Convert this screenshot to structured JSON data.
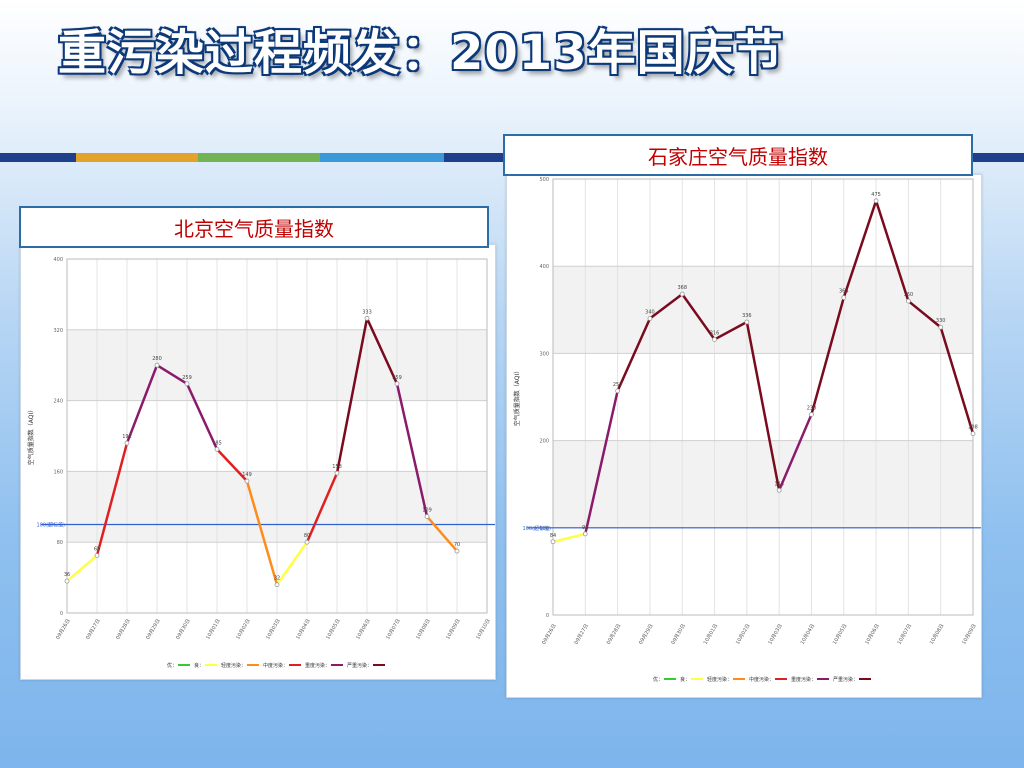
{
  "slide": {
    "title": "重污染过程频发：2013年国庆节"
  },
  "colors": {
    "band_dark": "#1f3f8a",
    "band_orange": "#e3a32b",
    "band_green": "#73b356",
    "band_blue": "#3a9ad9",
    "good": "#33cc33",
    "moderate": "#ffff44",
    "light": "#ff8c1a",
    "medium": "#e02020",
    "heavy": "#8b1a6b",
    "severe": "#7a0a1e",
    "limit_line": "#3060d0"
  },
  "levels": [
    {
      "label": "优",
      "color": "#33cc33"
    },
    {
      "label": "良",
      "color": "#ffff44"
    },
    {
      "label": "轻度污染",
      "color": "#ff8c1a"
    },
    {
      "label": "中度污染",
      "color": "#e02020"
    },
    {
      "label": "重度污染",
      "color": "#8b1a6b"
    },
    {
      "label": "严重污染",
      "color": "#7a0a1e"
    }
  ],
  "chart_data": [
    {
      "type": "line",
      "title": "北京空气质量指数",
      "ylabel": "空气质量指数（AQI）",
      "ylim": [
        0,
        400
      ],
      "yticks": [
        0,
        80,
        160,
        240,
        320,
        400
      ],
      "reference": {
        "value": 100,
        "label": "100(超标值)"
      },
      "categories": [
        "09月26日",
        "09月27日",
        "09月28日",
        "09月29日",
        "09月30日",
        "10月01日",
        "10月02日",
        "10月03日",
        "10月04日",
        "10月05日",
        "10月06日",
        "10月07日",
        "10月08日",
        "10月09日",
        "10月10日"
      ],
      "values": [
        36,
        65,
        192,
        280,
        259,
        185,
        149,
        32,
        80,
        158,
        333,
        259,
        109,
        70,
        null
      ],
      "grid": true
    },
    {
      "type": "line",
      "title": "石家庄空气质量指数",
      "ylabel": "空气质量指数（AQI）",
      "ylim": [
        0,
        500
      ],
      "yticks": [
        0,
        100,
        200,
        300,
        400,
        500
      ],
      "reference": {
        "value": 100,
        "label": "100(超标值)"
      },
      "categories": [
        "09月26日",
        "09月27日",
        "09月28日",
        "09月29日",
        "09月30日",
        "10月01日",
        "10月02日",
        "10月03日",
        "10月04日",
        "10月05日",
        "10月06日",
        "10月07日",
        "10月08日",
        "10月09日"
      ],
      "values": [
        84,
        93,
        257,
        340,
        368,
        316,
        336,
        143,
        230,
        364,
        475,
        360,
        330,
        208
      ],
      "grid": true
    }
  ]
}
